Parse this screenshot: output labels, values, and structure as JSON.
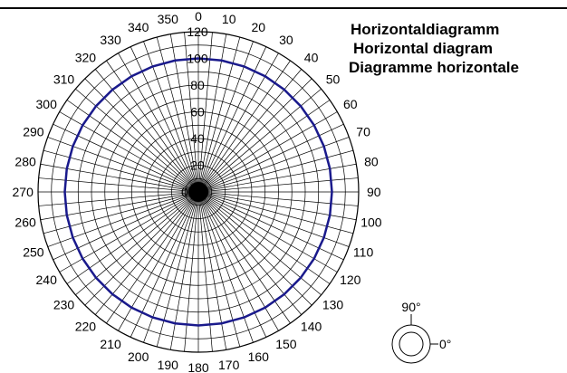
{
  "titles": {
    "line1": "Horizontaldiagramm",
    "line2": "Horizontal diagram",
    "line3": "Diagramme horizontale"
  },
  "legend_icon": {
    "label_top": "90°",
    "label_right": "0°"
  },
  "colors": {
    "series": "#1a1a8c",
    "grid": "#000000"
  },
  "chart_data": {
    "type": "polar-line",
    "angle_unit": "degrees",
    "angle_ticks": [
      0,
      10,
      20,
      30,
      40,
      50,
      60,
      70,
      80,
      90,
      100,
      110,
      120,
      130,
      140,
      150,
      160,
      170,
      180,
      190,
      200,
      210,
      220,
      230,
      240,
      250,
      260,
      270,
      280,
      290,
      300,
      310,
      320,
      330,
      340,
      350
    ],
    "radial_ticks": [
      0,
      20,
      40,
      60,
      80,
      100,
      120
    ],
    "radial_range": [
      0,
      120
    ],
    "series": [
      {
        "angles": [
          0,
          10,
          20,
          30,
          40,
          50,
          60,
          70,
          80,
          90,
          100,
          110,
          120,
          130,
          140,
          150,
          160,
          170,
          180,
          190,
          200,
          210,
          220,
          230,
          240,
          250,
          260,
          270,
          280,
          290,
          300,
          310,
          320,
          330,
          340,
          350
        ],
        "values": [
          100,
          100,
          100,
          100,
          100,
          100,
          100,
          100,
          100,
          100,
          100,
          100,
          100,
          100,
          100,
          100,
          100,
          100,
          100,
          100,
          100,
          100,
          100,
          100,
          100,
          100,
          100,
          100,
          100,
          100,
          100,
          100,
          100,
          100,
          100,
          100
        ]
      }
    ]
  }
}
